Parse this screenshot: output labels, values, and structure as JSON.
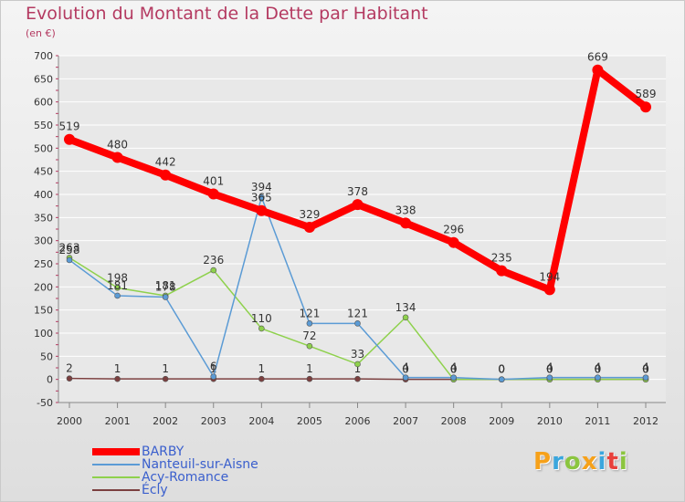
{
  "title": "Evolution du Montant de la Dette par Habitant",
  "subtitle": "(en €)",
  "logo": {
    "letters": [
      "P",
      "r",
      "o",
      "x",
      "i",
      "t",
      "i"
    ],
    "colors": [
      "#f6a11a",
      "#3aa6dd",
      "#8bc53f",
      "#f6a11a",
      "#3aa6dd",
      "#e8413c",
      "#8bc53f"
    ]
  },
  "chart_data": {
    "type": "line",
    "x": [
      2000,
      2001,
      2002,
      2003,
      2004,
      2005,
      2006,
      2007,
      2008,
      2009,
      2010,
      2011,
      2012
    ],
    "ylim": [
      -50,
      700
    ],
    "yticks": [
      -50,
      0,
      50,
      100,
      150,
      200,
      250,
      300,
      350,
      400,
      450,
      500,
      550,
      600,
      650,
      700
    ],
    "grid": "horizontal",
    "legend": "bottom-left",
    "series": [
      {
        "name": "BARBY",
        "color": "#ff0000",
        "values": [
          519,
          480,
          442,
          401,
          365,
          329,
          378,
          338,
          296,
          235,
          194,
          669,
          589
        ]
      },
      {
        "name": "Nanteuil-sur-Aisne",
        "color": "#5b9bd5",
        "values": [
          258,
          181,
          178,
          6,
          394,
          121,
          121,
          4,
          4,
          0,
          4,
          4,
          4
        ]
      },
      {
        "name": "Acy-Romance",
        "color": "#8ed14c",
        "values": [
          263,
          198,
          181,
          236,
          110,
          72,
          33,
          134,
          0,
          0,
          0,
          0,
          0
        ]
      },
      {
        "name": "Écly",
        "color": "#7b3f3f",
        "values": [
          2,
          1,
          1,
          1,
          1,
          1,
          1,
          0,
          0,
          0,
          0,
          0,
          0
        ]
      }
    ]
  }
}
